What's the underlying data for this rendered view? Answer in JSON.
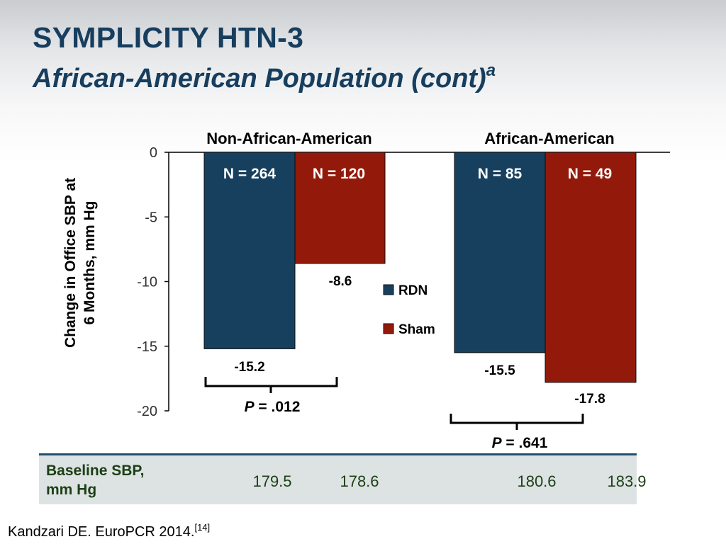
{
  "slide": {
    "title": "SYMPLICITY HTN-3",
    "subtitle": "African-American Population (cont)",
    "subtitle_superscript": "a",
    "citation": "Kandzari DE. EuroPCR 2014.",
    "citation_ref": "[14]"
  },
  "chart_data": {
    "type": "bar",
    "groups": [
      "Non-African-American",
      "African-American"
    ],
    "ylabel_line1": "Change in Office SBP at",
    "ylabel_line2": "6 Months, mm Hg",
    "ylim": [
      -20,
      0
    ],
    "yticks": [
      0,
      -5,
      -10,
      -15,
      -20
    ],
    "legend_position": "center",
    "series": [
      {
        "name": "RDN",
        "color": "#17405e",
        "values": [
          -15.2,
          -15.5
        ],
        "n_labels": [
          "N = 264",
          "N = 85"
        ],
        "value_labels": [
          "-15.2",
          "-15.5"
        ]
      },
      {
        "name": "Sham",
        "color": "#931a0a",
        "values": [
          -8.6,
          -17.8
        ],
        "n_labels": [
          "N = 120",
          "N = 49"
        ],
        "value_labels": [
          "-8.6",
          "-17.8"
        ]
      }
    ],
    "pvalues": [
      {
        "prefix": "P",
        "value": " = .012"
      },
      {
        "prefix": "P",
        "value": " = .641"
      }
    ],
    "baseline": {
      "label_line1": "Baseline SBP,",
      "label_line2": "mm Hg",
      "values": [
        "179.5",
        "178.6",
        "180.6",
        "183.9"
      ]
    }
  }
}
